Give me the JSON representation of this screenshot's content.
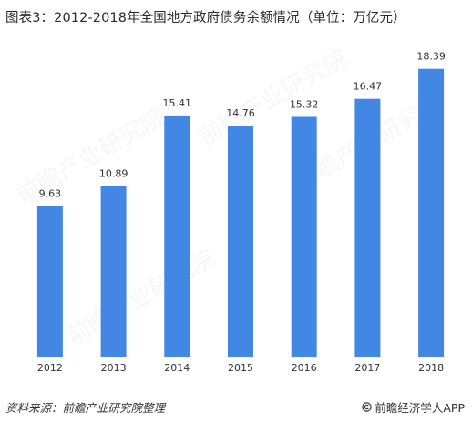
{
  "chart_data": {
    "type": "bar",
    "title": "图表3：2012-2018年全国地方政府债务余额情况（单位：万亿元）",
    "categories": [
      "2012",
      "2013",
      "2014",
      "2015",
      "2016",
      "2017",
      "2018"
    ],
    "values": [
      9.63,
      10.89,
      15.41,
      14.76,
      15.32,
      16.47,
      18.39
    ],
    "value_labels": [
      "9.63",
      "10.89",
      "15.41",
      "14.76",
      "15.32",
      "16.47",
      "18.39"
    ],
    "bar_color": "#4287e3",
    "ylim": [
      0,
      20
    ],
    "grid": false,
    "legend": "none"
  },
  "footer": {
    "source": "资料来源：前瞻产业研究院整理",
    "brand_icon": "copyright-logo-icon",
    "brand": "前瞻经济学人APP"
  },
  "watermark": "前瞻产业研究院"
}
